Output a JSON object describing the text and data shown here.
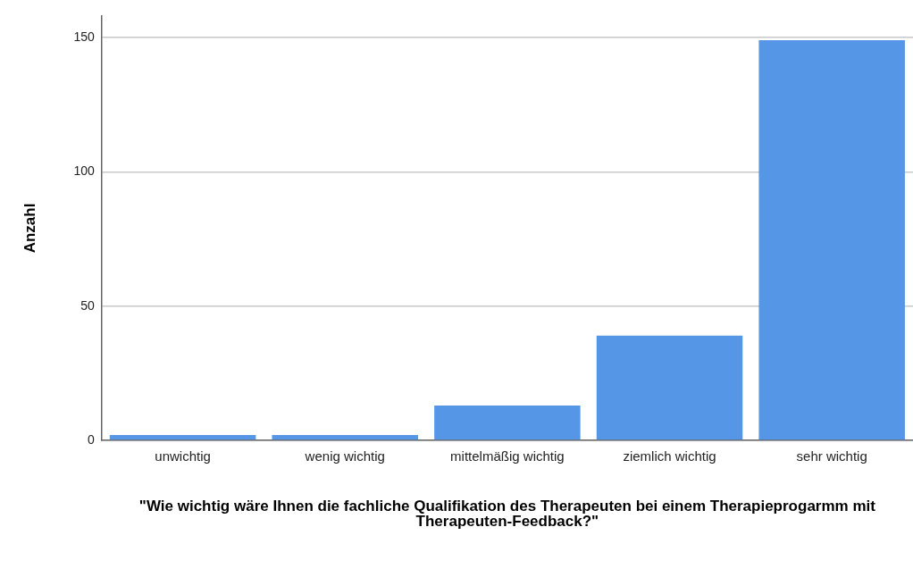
{
  "chart_data": {
    "type": "bar",
    "xlabel": "\"Wie wichtig wäre Ihnen die fachliche Qualifikation des Therapeuten bei einem Therapieprogarmm mit Therapeuten-Feedback?\"",
    "ylabel": "Anzahl",
    "categories": [
      "unwichtig",
      "wenig wichtig",
      "mittelmäßig wichtig",
      "ziemlich wichtig",
      "sehr wichtig"
    ],
    "values": [
      2,
      2,
      13,
      39,
      149
    ],
    "color": "#5596e6",
    "ylim": [
      0,
      158
    ],
    "yticks": [
      0,
      50,
      100,
      150
    ],
    "grid": "y"
  }
}
